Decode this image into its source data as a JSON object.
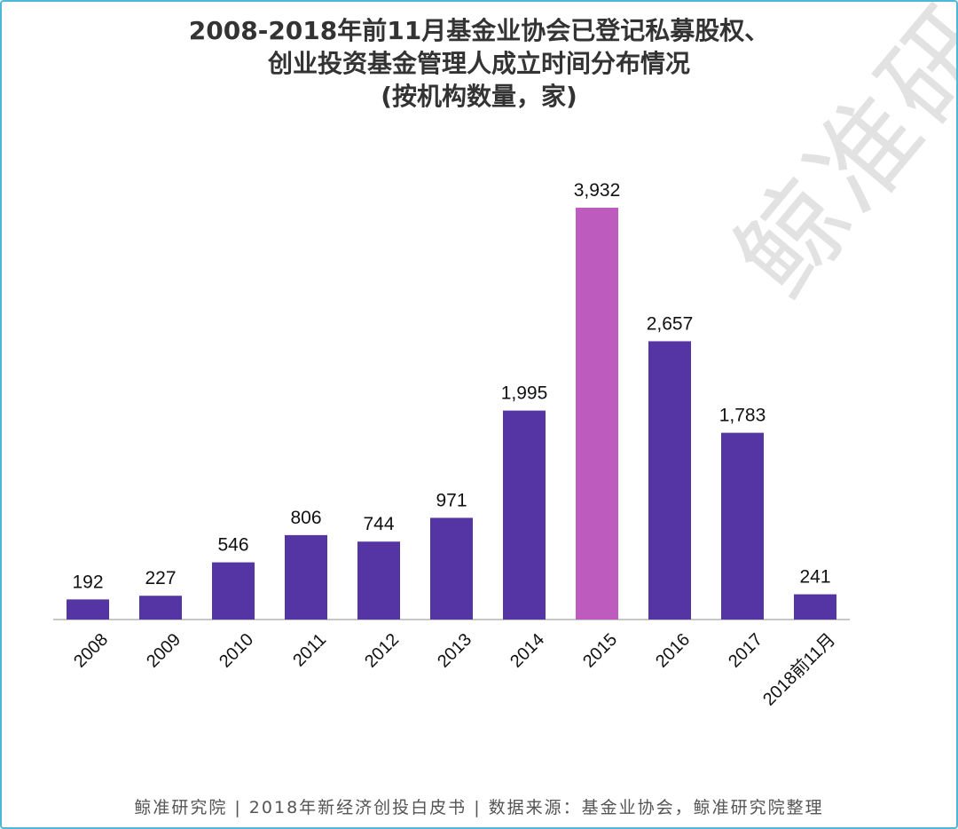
{
  "title_lines": [
    "2008-2018年前11月基金业协会已登记私募股权、",
    "创业投资基金管理人成立时间分布情况",
    "(按机构数量，家)"
  ],
  "watermark": "鲸准研",
  "footer": "鲸准研究院 | 2018年新经济创投白皮书 | 数据来源：基金业协会，鲸准研究院整理",
  "colors": {
    "bar": "#5535a3",
    "highlight": "#bd5cbe",
    "axis": "#c8c8c8",
    "text": "#111111"
  },
  "chart_data": {
    "type": "bar",
    "title": "2008-2018年前11月基金业协会已登记私募股权、创业投资基金管理人成立时间分布情况 (按机构数量，家)",
    "xlabel": "",
    "ylabel": "",
    "grid": false,
    "categories": [
      "2008",
      "2009",
      "2010",
      "2011",
      "2012",
      "2013",
      "2014",
      "2015",
      "2016",
      "2017",
      "2018前11月"
    ],
    "values": [
      192,
      227,
      546,
      806,
      744,
      971,
      1995,
      3932,
      2657,
      1783,
      241
    ],
    "value_labels": [
      "192",
      "227",
      "546",
      "806",
      "744",
      "971",
      "1,995",
      "3,932",
      "2,657",
      "1,783",
      "241"
    ],
    "highlight_category": "2015",
    "ylim": [
      0,
      3932
    ]
  }
}
